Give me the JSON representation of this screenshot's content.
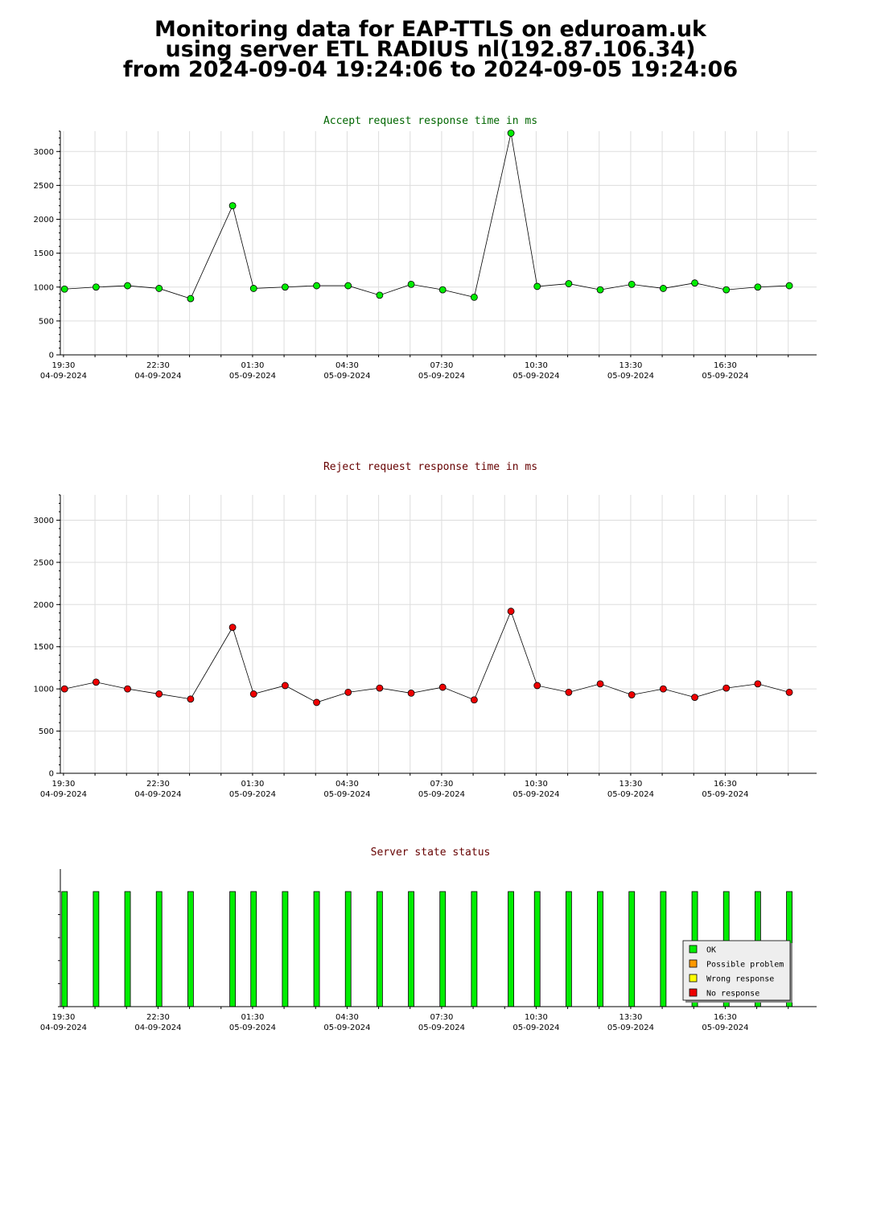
{
  "page": {
    "title_lines": [
      "Monitoring data for EAP-TTLS on eduroam.uk",
      "using server ETL RADIUS nl(192.87.106.34)",
      "from 2024-09-04 19:24:06 to 2024-09-05 19:24:06"
    ]
  },
  "colors": {
    "accept_title": "#006600",
    "reject_title": "#660000",
    "status_title": "#660000",
    "grid": "#dddddd",
    "accept_marker": "#00ee00",
    "reject_marker": "#ee0000",
    "ok": "#00ee00",
    "possible_problem": "#ff9900",
    "wrong_response": "#ffff00",
    "no_response": "#ee0000"
  },
  "chart_data": [
    {
      "type": "line",
      "title": "Accept request response time in ms",
      "xlim": [
        "2024-09-04 19:24",
        "2024-09-05 19:24"
      ],
      "ylim": [
        0,
        3300
      ],
      "yticks": [
        0,
        500,
        1000,
        1500,
        2000,
        2500,
        3000
      ],
      "xticks": [
        {
          "time": "19:30",
          "date": "04-09-2024"
        },
        {
          "time": "22:30",
          "date": "04-09-2024"
        },
        {
          "time": "01:30",
          "date": "05-09-2024"
        },
        {
          "time": "04:30",
          "date": "05-09-2024"
        },
        {
          "time": "07:30",
          "date": "05-09-2024"
        },
        {
          "time": "10:30",
          "date": "05-09-2024"
        },
        {
          "time": "13:30",
          "date": "05-09-2024"
        },
        {
          "time": "16:30",
          "date": "05-09-2024"
        }
      ],
      "grid": true,
      "series": [
        {
          "x": [
            "2024-09-04 19:32",
            "2024-09-04 20:32",
            "2024-09-04 21:32",
            "2024-09-04 22:32",
            "2024-09-04 23:32",
            "2024-09-05 00:52",
            "2024-09-05 01:32",
            "2024-09-05 02:32",
            "2024-09-05 03:32",
            "2024-09-05 04:32",
            "2024-09-05 05:32",
            "2024-09-05 06:32",
            "2024-09-05 07:32",
            "2024-09-05 08:32",
            "2024-09-05 09:42",
            "2024-09-05 10:32",
            "2024-09-05 11:32",
            "2024-09-05 12:32",
            "2024-09-05 13:32",
            "2024-09-05 14:32",
            "2024-09-05 15:32",
            "2024-09-05 16:32",
            "2024-09-05 17:32",
            "2024-09-05 18:32"
          ],
          "values": [
            970,
            1000,
            1020,
            980,
            830,
            2200,
            980,
            1000,
            1020,
            1020,
            880,
            1040,
            960,
            850,
            3270,
            1010,
            1050,
            960,
            1040,
            980,
            1060,
            960,
            1000,
            1020
          ]
        }
      ]
    },
    {
      "type": "line",
      "title": "Reject request response time in ms",
      "xlim": [
        "2024-09-04 19:24",
        "2024-09-05 19:24"
      ],
      "ylim": [
        0,
        3300
      ],
      "yticks": [
        0,
        500,
        1000,
        1500,
        2000,
        2500,
        3000
      ],
      "xticks": [
        {
          "time": "19:30",
          "date": "04-09-2024"
        },
        {
          "time": "22:30",
          "date": "04-09-2024"
        },
        {
          "time": "01:30",
          "date": "05-09-2024"
        },
        {
          "time": "04:30",
          "date": "05-09-2024"
        },
        {
          "time": "07:30",
          "date": "05-09-2024"
        },
        {
          "time": "10:30",
          "date": "05-09-2024"
        },
        {
          "time": "13:30",
          "date": "05-09-2024"
        },
        {
          "time": "16:30",
          "date": "05-09-2024"
        }
      ],
      "grid": true,
      "series": [
        {
          "x": [
            "2024-09-04 19:32",
            "2024-09-04 20:32",
            "2024-09-04 21:32",
            "2024-09-04 22:32",
            "2024-09-04 23:32",
            "2024-09-05 00:52",
            "2024-09-05 01:32",
            "2024-09-05 02:32",
            "2024-09-05 03:32",
            "2024-09-05 04:32",
            "2024-09-05 05:32",
            "2024-09-05 06:32",
            "2024-09-05 07:32",
            "2024-09-05 08:32",
            "2024-09-05 09:42",
            "2024-09-05 10:32",
            "2024-09-05 11:32",
            "2024-09-05 12:32",
            "2024-09-05 13:32",
            "2024-09-05 14:32",
            "2024-09-05 15:32",
            "2024-09-05 16:32",
            "2024-09-05 17:32",
            "2024-09-05 18:32"
          ],
          "values": [
            1000,
            1080,
            1000,
            940,
            880,
            1730,
            940,
            1040,
            840,
            960,
            1010,
            950,
            1020,
            870,
            1920,
            1040,
            960,
            1060,
            930,
            1000,
            900,
            1010,
            1060,
            960
          ]
        }
      ]
    },
    {
      "type": "bar",
      "title": "Server state status",
      "xlim": [
        "2024-09-04 19:24",
        "2024-09-05 19:24"
      ],
      "xticks": [
        {
          "time": "19:30",
          "date": "04-09-2024"
        },
        {
          "time": "22:30",
          "date": "04-09-2024"
        },
        {
          "time": "01:30",
          "date": "05-09-2024"
        },
        {
          "time": "04:30",
          "date": "05-09-2024"
        },
        {
          "time": "07:30",
          "date": "05-09-2024"
        },
        {
          "time": "10:30",
          "date": "05-09-2024"
        },
        {
          "time": "13:30",
          "date": "05-09-2024"
        },
        {
          "time": "16:30",
          "date": "05-09-2024"
        }
      ],
      "grid": false,
      "x": [
        "2024-09-04 19:32",
        "2024-09-04 20:32",
        "2024-09-04 21:32",
        "2024-09-04 22:32",
        "2024-09-04 23:32",
        "2024-09-05 00:52",
        "2024-09-05 01:32",
        "2024-09-05 02:32",
        "2024-09-05 03:32",
        "2024-09-05 04:32",
        "2024-09-05 05:32",
        "2024-09-05 06:32",
        "2024-09-05 07:32",
        "2024-09-05 08:32",
        "2024-09-05 09:42",
        "2024-09-05 10:32",
        "2024-09-05 11:32",
        "2024-09-05 12:32",
        "2024-09-05 13:32",
        "2024-09-05 14:32",
        "2024-09-05 15:32",
        "2024-09-05 16:32",
        "2024-09-05 17:32",
        "2024-09-05 18:32"
      ],
      "states": [
        "OK",
        "OK",
        "OK",
        "OK",
        "OK",
        "OK",
        "OK",
        "OK",
        "OK",
        "OK",
        "OK",
        "OK",
        "OK",
        "OK",
        "OK",
        "OK",
        "OK",
        "OK",
        "OK",
        "OK",
        "OK",
        "OK",
        "OK",
        "OK"
      ],
      "legend": [
        {
          "label": "OK",
          "color": "#00ee00"
        },
        {
          "label": "Possible problem",
          "color": "#ff9900"
        },
        {
          "label": "Wrong response",
          "color": "#ffff00"
        },
        {
          "label": "No response",
          "color": "#ee0000"
        }
      ],
      "legend_position": "bottom-right"
    }
  ]
}
